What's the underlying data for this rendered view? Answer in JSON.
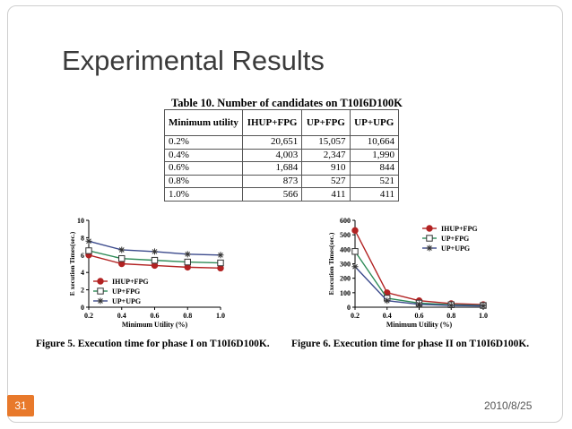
{
  "slide": {
    "title": "Experimental Results",
    "number": "31",
    "date": "2010/8/25"
  },
  "table": {
    "caption": "Table 10. Number of candidates on T10I6D100K",
    "headers": [
      "Minimum utility",
      "IHUP+FPG",
      "UP+FPG",
      "UP+UPG"
    ],
    "rows": [
      [
        "0.2%",
        "20,651",
        "15,057",
        "10,664"
      ],
      [
        "0.4%",
        "4,003",
        "2,347",
        "1,990"
      ],
      [
        "0.6%",
        "1,684",
        "910",
        "844"
      ],
      [
        "0.8%",
        "873",
        "527",
        "521"
      ],
      [
        "1.0%",
        "566",
        "411",
        "411"
      ]
    ]
  },
  "figures": {
    "fig5_caption": "Figure 5. Execution time for phase I on T10I6D100K.",
    "fig6_caption": "Figure 6. Execution time for phase II on T10I6D100K."
  },
  "chart_data": [
    {
      "type": "line",
      "x": [
        0.2,
        0.4,
        0.6,
        0.8,
        1.0
      ],
      "xlabel": "Minimum Utility (%)",
      "ylabel": "E xecution Times(sec.)",
      "xlim": [
        0.2,
        1.0
      ],
      "ylim": [
        0,
        10
      ],
      "xticks": [
        "0.2",
        "0.4",
        "0.6",
        "0.8",
        "1.0"
      ],
      "yticks": [
        "0",
        "2",
        "4",
        "6",
        "8",
        "10"
      ],
      "legend_position": "bottom-left",
      "grid": false,
      "series": [
        {
          "name": "IHUP+FPG",
          "marker": "filled-circle",
          "color": "#b22222",
          "values": [
            6.0,
            5.0,
            4.8,
            4.6,
            4.5
          ]
        },
        {
          "name": "UP+FPG",
          "marker": "open-square",
          "color": "#2e8b57",
          "values": [
            6.5,
            5.6,
            5.4,
            5.2,
            5.1
          ]
        },
        {
          "name": "UP+UPG",
          "marker": "star",
          "color": "#3b4a8c",
          "values": [
            7.6,
            6.6,
            6.4,
            6.1,
            6.0
          ]
        }
      ]
    },
    {
      "type": "line",
      "x": [
        0.2,
        0.4,
        0.6,
        0.8,
        1.0
      ],
      "xlabel": "Minimum Utility (%)",
      "ylabel": "Execution Times(sec.)",
      "xlim": [
        0.2,
        1.0
      ],
      "ylim": [
        0,
        600
      ],
      "xticks": [
        "0.2",
        "0.4",
        "0.6",
        "0.8",
        "1.0"
      ],
      "yticks": [
        "0",
        "100",
        "200",
        "300",
        "400",
        "500",
        "600"
      ],
      "legend_position": "top-right",
      "grid": false,
      "series": [
        {
          "name": "IHUP+FPG",
          "marker": "filled-circle",
          "color": "#b22222",
          "values": [
            530,
            100,
            45,
            25,
            18
          ]
        },
        {
          "name": "UP+FPG",
          "marker": "open-square",
          "color": "#2e8b57",
          "values": [
            385,
            62,
            28,
            17,
            12
          ]
        },
        {
          "name": "UP+UPG",
          "marker": "star",
          "color": "#3b4a8c",
          "values": [
            280,
            45,
            20,
            12,
            9
          ]
        }
      ]
    }
  ]
}
